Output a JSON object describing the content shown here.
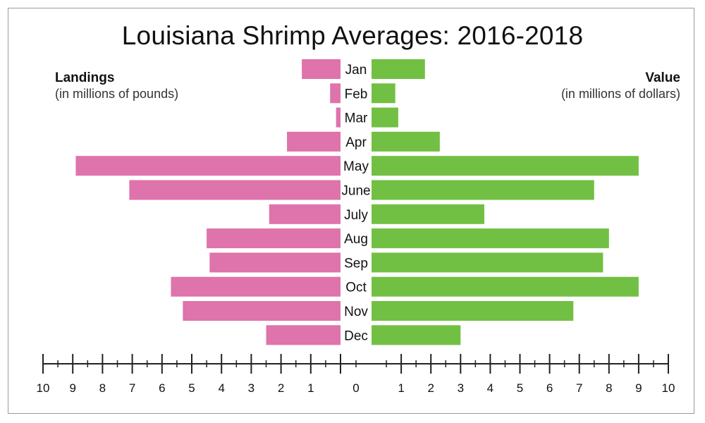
{
  "chart_data": {
    "type": "bar",
    "title": "Louisiana Shrimp Averages: 2016-2018",
    "categories": [
      "Jan",
      "Feb",
      "Mar",
      "Apr",
      "May",
      "June",
      "July",
      "Aug",
      "Sep",
      "Oct",
      "Nov",
      "Dec"
    ],
    "series": [
      {
        "name": "Landings",
        "subtitle": "(in millions of pounds)",
        "color": "#df73ab",
        "values": [
          1.3,
          0.35,
          0.15,
          1.8,
          8.9,
          7.1,
          2.4,
          4.5,
          4.4,
          5.7,
          5.3,
          2.5
        ]
      },
      {
        "name": "Value",
        "subtitle": "(in millions of dollars)",
        "color": "#72c043",
        "values": [
          1.8,
          0.8,
          0.9,
          2.3,
          9.0,
          7.5,
          3.8,
          8.0,
          7.8,
          9.0,
          6.8,
          3.0
        ]
      }
    ],
    "left_ticks": [
      "10",
      "9",
      "8",
      "7",
      "6",
      "5",
      "4",
      "3",
      "2",
      "1",
      "0"
    ],
    "right_ticks": [
      "1",
      "2",
      "3",
      "4",
      "5",
      "6",
      "7",
      "8",
      "9",
      "10"
    ],
    "xlim": [
      0,
      10
    ],
    "orientation": "horizontal-back-to-back"
  }
}
